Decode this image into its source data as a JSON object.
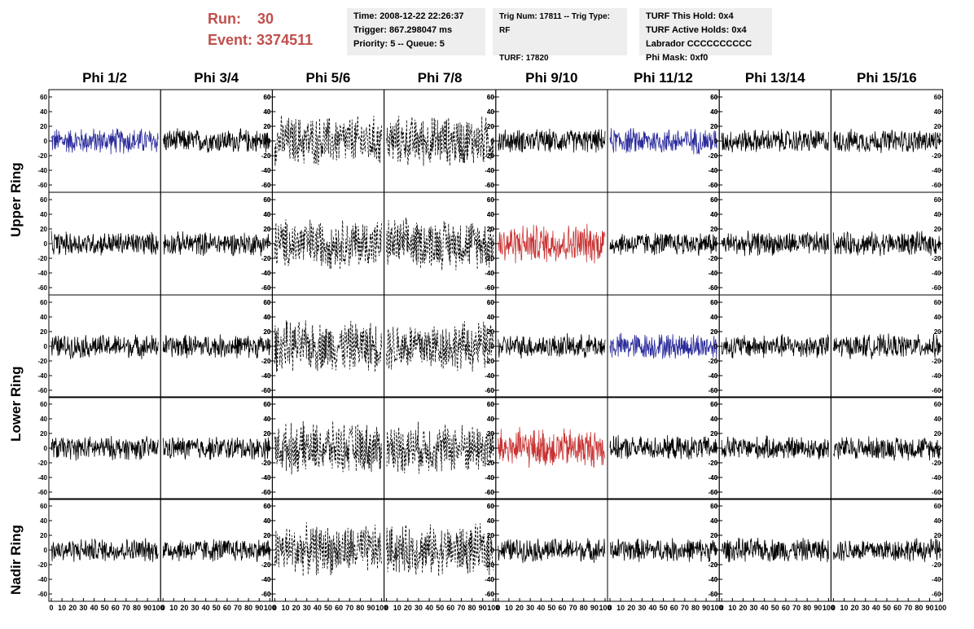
{
  "run": {
    "run_label": "Run:",
    "run_value": "30",
    "event_label": "Event:",
    "event_value": "3374511"
  },
  "info_box_1": [
    "Time: 2008-12-22 22:26:37",
    "Trigger: 867.298047 ms",
    "Priority: 5 -- Queue: 5"
  ],
  "info_box_2": [
    "Trig Num: 17811 -- Trig Type: RF",
    "",
    "TURF: 17820"
  ],
  "info_box_3": [
    "TURF This Hold: 0x4",
    "TURF Active Holds: 0x4",
    "Labrador CCCCCCCCCC",
    "Phi Mask: 0xf0"
  ],
  "columns": [
    "Phi 1/2",
    "Phi 3/4",
    "Phi 5/6",
    "Phi 7/8",
    "Phi 9/10",
    "Phi 11/12",
    "Phi 13/14",
    "Phi 15/16"
  ],
  "rows": [
    "Upper Ring",
    "Lower Ring",
    "Nadir Ring"
  ],
  "colors": {
    "black": "#000000",
    "blue": "#2b2b9c",
    "red": "#c83232",
    "title_red": "#c0504d",
    "box_bg": "#eeeeee"
  },
  "chart_data": {
    "type": "line",
    "ylim": [
      -70,
      70
    ],
    "yticks": [
      -60,
      -40,
      -20,
      0,
      20,
      40,
      60
    ],
    "xlim": [
      0,
      100
    ],
    "xtick_labels": [
      "0",
      "10",
      "20",
      "30",
      "40",
      "50",
      "60",
      "70",
      "80",
      "90",
      "100"
    ],
    "panel_styles": [
      [
        "blue",
        "black",
        "dashed",
        "dashed",
        "black",
        "blue",
        "black",
        "black"
      ],
      [
        "black",
        "black",
        "dashed",
        "dashed",
        "red",
        "black",
        "black",
        "black"
      ],
      [
        "black",
        "black",
        "dashed",
        "dashed",
        "black",
        "blue",
        "black",
        "black"
      ],
      [
        "black",
        "black",
        "dashed",
        "dashed",
        "red",
        "black",
        "black",
        "black"
      ],
      [
        "black",
        "black",
        "dashed",
        "dashed",
        "black",
        "black",
        "black",
        "black"
      ]
    ]
  }
}
